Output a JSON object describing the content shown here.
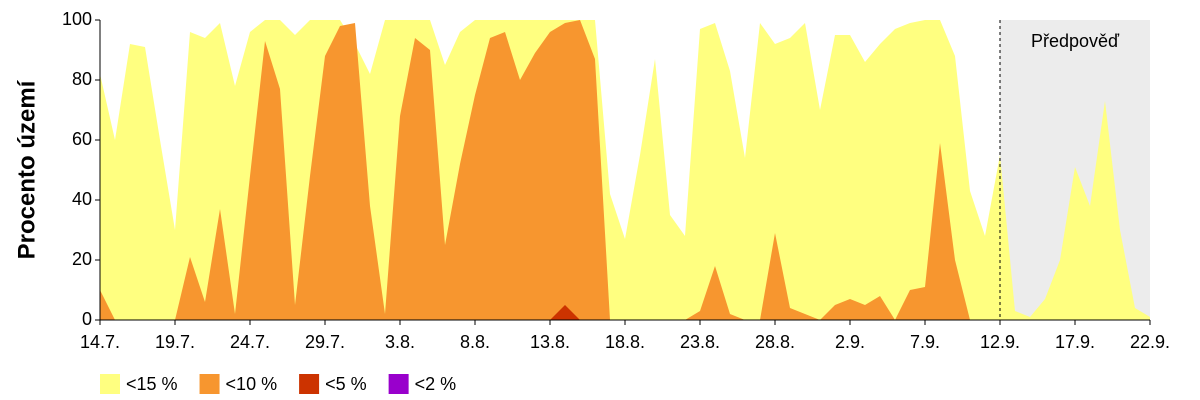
{
  "chart_data": {
    "type": "area",
    "y_label": "Procento území",
    "forecast_label": "Předpověď",
    "forecast_from": "12.9.",
    "categories": [
      "14.7.",
      null,
      null,
      null,
      null,
      "19.7.",
      null,
      null,
      null,
      null,
      "24.7.",
      null,
      null,
      null,
      null,
      "29.7.",
      null,
      null,
      null,
      null,
      "3.8.",
      null,
      null,
      null,
      null,
      "8.8.",
      null,
      null,
      null,
      null,
      "13.8.",
      null,
      null,
      null,
      null,
      "18.8.",
      null,
      null,
      null,
      null,
      "23.8.",
      null,
      null,
      null,
      null,
      "28.8.",
      null,
      null,
      null,
      null,
      "2.9.",
      null,
      null,
      null,
      null,
      "7.9.",
      null,
      null,
      null,
      null,
      "12.9.",
      null,
      null,
      null,
      null,
      "17.9.",
      null,
      null,
      null,
      null,
      "22.9."
    ],
    "series": [
      {
        "name": "<15 %",
        "color": "#ffff80",
        "values": [
          82,
          60,
          92,
          91,
          60,
          30,
          96,
          94,
          99,
          78,
          96,
          100,
          100,
          95,
          100,
          100,
          100,
          92,
          82,
          100,
          100,
          100,
          100,
          85,
          96,
          100,
          100,
          100,
          100,
          100,
          100,
          100,
          100,
          100,
          42,
          27,
          55,
          87,
          35,
          28,
          97,
          99,
          83,
          54,
          99,
          92,
          94,
          99,
          70,
          95,
          95,
          86,
          92,
          97,
          99,
          100,
          100,
          88,
          43,
          28,
          55,
          3,
          1,
          7,
          20,
          51,
          38,
          73,
          30,
          4,
          1
        ]
      },
      {
        "name": "<10 %",
        "color": "#f7962f",
        "values": [
          10,
          0,
          0,
          0,
          0,
          0,
          21,
          6,
          37,
          2,
          48,
          93,
          77,
          5,
          48,
          88,
          98,
          99,
          38,
          2,
          68,
          94,
          90,
          25,
          52,
          75,
          94,
          96,
          80,
          89,
          96,
          99,
          100,
          87,
          0,
          0,
          0,
          0,
          0,
          0,
          3,
          18,
          2,
          0,
          0,
          29,
          4,
          2,
          0,
          5,
          7,
          5,
          8,
          0,
          10,
          11,
          59,
          20,
          0,
          0,
          0,
          0,
          0,
          0,
          0,
          0,
          0,
          0,
          0,
          0,
          0
        ]
      },
      {
        "name": "<5 %",
        "color": "#cc3300",
        "values": [
          0,
          0,
          0,
          0,
          0,
          0,
          0,
          0,
          0,
          0,
          0,
          0,
          0,
          0,
          0,
          0,
          0,
          0,
          0,
          0,
          0,
          0,
          0,
          0,
          0,
          0,
          0,
          0,
          0,
          0,
          0,
          5,
          0,
          0,
          0,
          0,
          0,
          0,
          0,
          0,
          0,
          0,
          0,
          0,
          0,
          0,
          0,
          0,
          0,
          0,
          0,
          0,
          0,
          0,
          0,
          0,
          0,
          0,
          0,
          0,
          0,
          0,
          0,
          0,
          0,
          0,
          0,
          0,
          0,
          0,
          0
        ]
      },
      {
        "name": "<2 %",
        "color": "#9900cc",
        "values": [
          0,
          0,
          0,
          0,
          0,
          0,
          0,
          0,
          0,
          0,
          0,
          0,
          0,
          0,
          0,
          0,
          0,
          0,
          0,
          0,
          0,
          0,
          0,
          0,
          0,
          0,
          0,
          0,
          0,
          0,
          0,
          0,
          0,
          0,
          0,
          0,
          0,
          0,
          0,
          0,
          0,
          0,
          0,
          0,
          0,
          0,
          0,
          0,
          0,
          0,
          0,
          0,
          0,
          0,
          0,
          0,
          0,
          0,
          0,
          0,
          0,
          0,
          0,
          0,
          0,
          0,
          0,
          0,
          0,
          0,
          0
        ]
      }
    ],
    "ylim": [
      0,
      100
    ],
    "yticks": [
      0,
      20,
      40,
      60,
      80,
      100
    ],
    "legend": "bottom-left"
  }
}
